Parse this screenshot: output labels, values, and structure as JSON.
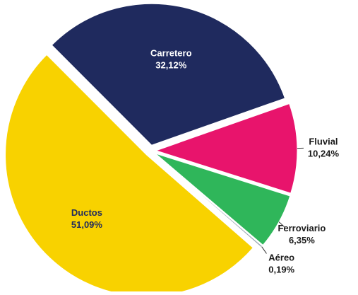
{
  "chart_data": {
    "type": "pie",
    "categories": [
      "Carretero",
      "Fluvial",
      "Ferroviario",
      "Aéreo",
      "Ductos"
    ],
    "values": [
      32.12,
      10.24,
      6.35,
      0.19,
      51.09
    ],
    "value_labels": [
      "32,12%",
      "10,24%",
      "6,35%",
      "0,19%",
      "51,09%"
    ],
    "colors": [
      "#1f2a5e",
      "#e8146c",
      "#2fb65a",
      "#9aa7b4",
      "#f8d200"
    ],
    "label_colors": [
      "#ffffff",
      "#1a1a1a",
      "#1a1a1a",
      "#1a1a1a",
      "#1f2a5e"
    ]
  }
}
